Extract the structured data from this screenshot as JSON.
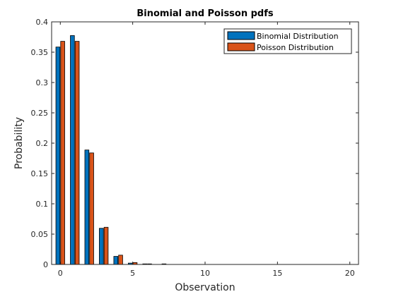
{
  "chart_data": {
    "type": "bar",
    "title": "Binomial and Poisson pdfs",
    "xlabel": "Observation",
    "ylabel": "Probability",
    "xlim": [
      -0.6,
      20.6
    ],
    "ylim": [
      0,
      0.4
    ],
    "xticks": [
      0,
      5,
      10,
      15,
      20
    ],
    "xtick_labels": [
      "0",
      "5",
      "10",
      "15",
      "20"
    ],
    "yticks": [
      0,
      0.05,
      0.1,
      0.15,
      0.2,
      0.25,
      0.3,
      0.35,
      0.4
    ],
    "ytick_labels": [
      "0",
      "0.05",
      "0.1",
      "0.15",
      "0.2",
      "0.25",
      "0.3",
      "0.35",
      "0.4"
    ],
    "grid": false,
    "legend_position": "top-right",
    "x": [
      0,
      1,
      2,
      3,
      4,
      5,
      6,
      7,
      8,
      9,
      10,
      11,
      12,
      13,
      14,
      15,
      16,
      17,
      18,
      19,
      20
    ],
    "series": [
      {
        "name": "Binomial Distribution",
        "color": "#0072BD",
        "values": [
          0.3585,
          0.3774,
          0.1887,
          0.0596,
          0.0133,
          0.0022,
          0.0003,
          0,
          0,
          0,
          0,
          0,
          0,
          0,
          0,
          0,
          0,
          0,
          0,
          0,
          0
        ]
      },
      {
        "name": "Poisson Distribution",
        "color": "#D95319",
        "values": [
          0.3679,
          0.3679,
          0.1839,
          0.0613,
          0.0153,
          0.0031,
          0.0005,
          0.0001,
          0,
          0,
          0,
          0,
          0,
          0,
          0,
          0,
          0,
          0,
          0,
          0,
          0
        ]
      }
    ]
  }
}
